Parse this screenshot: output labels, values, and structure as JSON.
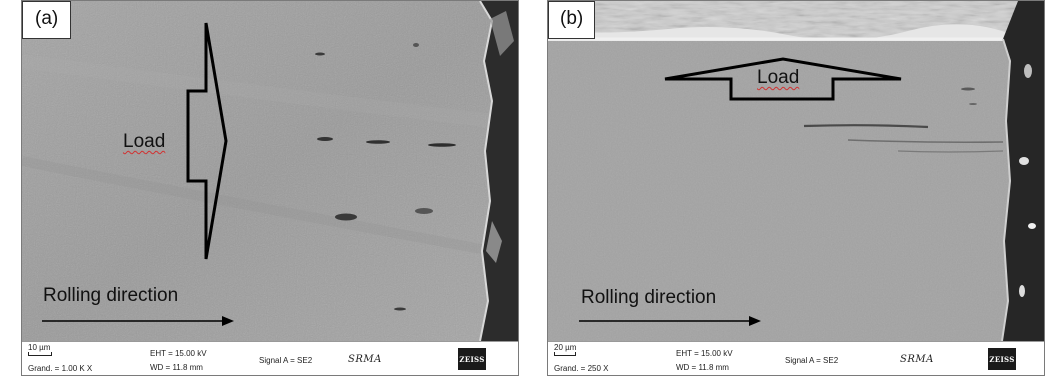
{
  "panels": [
    {
      "tag": "(a)",
      "load": "Load",
      "rolling": "Rolling direction",
      "databar": {
        "scale": "10 µm",
        "mag": "Grand. =   1.00 K X",
        "eht": "EHT = 15.00 kV",
        "wd": "WD = 11.8 mm",
        "signal": "Signal A = SE2",
        "operator": "SRMA",
        "logo": "ZEISS"
      }
    },
    {
      "tag": "(b)",
      "load": "Load",
      "rolling": "Rolling direction",
      "databar": {
        "scale": "20 µm",
        "mag": "Grand. =    250 X",
        "eht": "EHT = 15.00 kV",
        "wd": "WD = 11.8 mm",
        "signal": "Signal A = SE2",
        "operator": "SRMA",
        "logo": "ZEISS"
      }
    }
  ],
  "colors": {
    "sem_gray_a": "#9c9c9c",
    "sem_gray_b": "#a2a2a2",
    "edge_dark": "#2a2a2a",
    "squiggle": "#d23030"
  }
}
